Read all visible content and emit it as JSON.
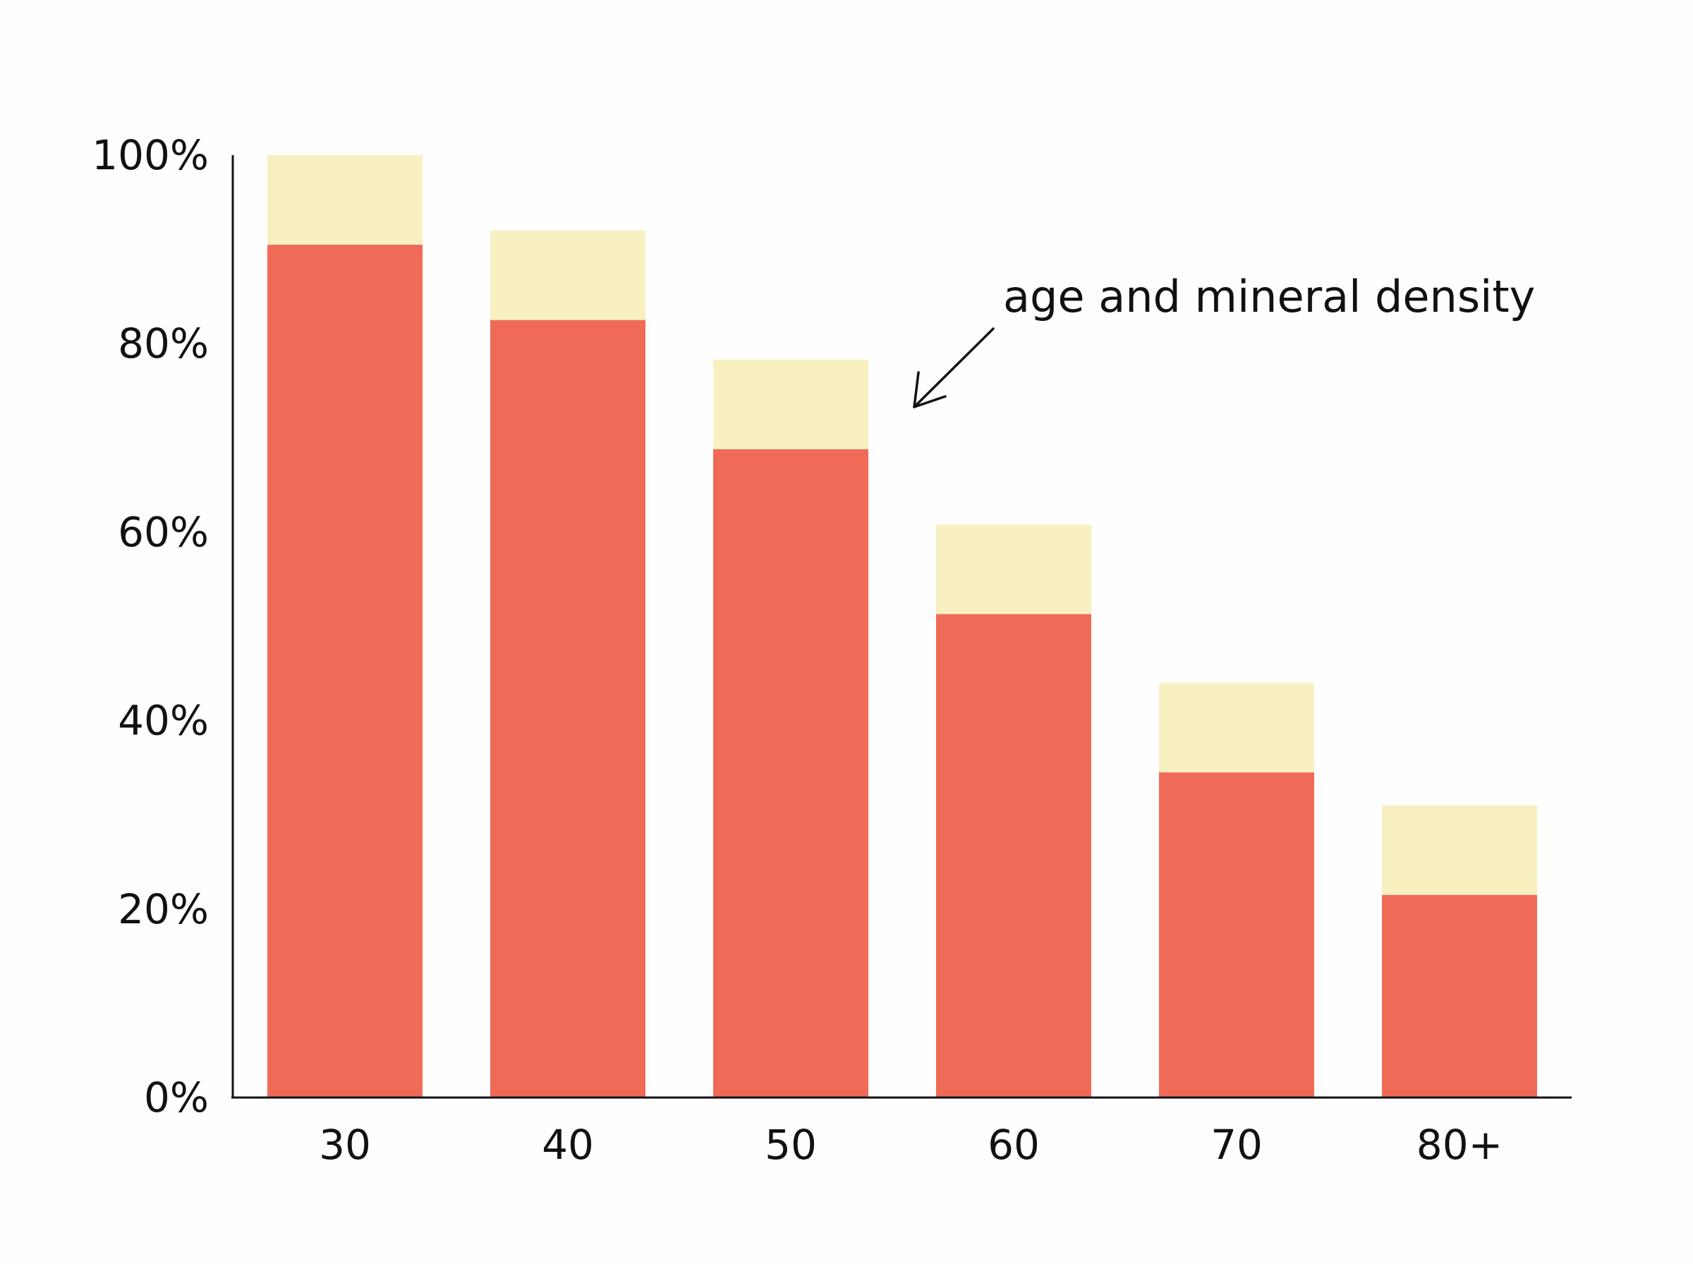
{
  "colors": {
    "lower": "#ef6b58",
    "upper": "#f9f0c1",
    "axis": "#111111",
    "text": "#111111"
  },
  "chart_data": {
    "type": "bar",
    "stacked": true,
    "categories": [
      "30",
      "40",
      "50",
      "60",
      "70",
      "80+"
    ],
    "series": [
      {
        "values": [
          90.5,
          82.5,
          68.8,
          51.3,
          34.5,
          21.5
        ]
      },
      {
        "values": [
          9.5,
          9.5,
          9.5,
          9.5,
          9.5,
          9.5
        ]
      }
    ],
    "ylim": [
      0,
      100
    ],
    "yticks": [
      "0%",
      "20%",
      "40%",
      "60%",
      "80%",
      "100%"
    ],
    "ytick_values": [
      0,
      20,
      40,
      60,
      80,
      100
    ],
    "title": "",
    "xlabel": "",
    "ylabel": "",
    "grid": false,
    "annotation": {
      "text": "age and mineral density",
      "points_to": "top of 50 bar (right side)"
    }
  }
}
